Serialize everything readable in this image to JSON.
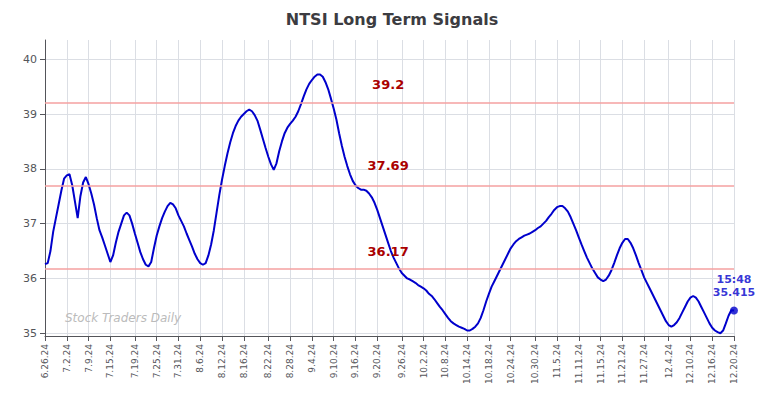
{
  "chart_data": {
    "type": "line",
    "title": "NTSI Long Term Signals",
    "color": "#0000cc",
    "grid": true,
    "ylim": [
      34.95,
      40.35
    ],
    "yticks": [
      35,
      36,
      37,
      38,
      39,
      40
    ],
    "hlines": [
      {
        "y": 39.2,
        "color": "#f5a0a0"
      },
      {
        "y": 37.69,
        "color": "#f5a0a0"
      },
      {
        "y": 36.17,
        "color": "#f5a0a0"
      }
    ],
    "annotations": [
      {
        "text": "39.2",
        "y": 39.42,
        "color": "#aa0000"
      },
      {
        "text": "37.69",
        "y": 37.95,
        "color": "#aa0000"
      },
      {
        "text": "36.17",
        "y": 36.38,
        "color": "#aa0000"
      }
    ],
    "end_label": {
      "text": "15:48\n35.415",
      "color": "#0000cc"
    },
    "watermark": {
      "text": "Stock Traders Daily",
      "color": "#bbbbbb"
    },
    "categories": [
      "6.26.24",
      null,
      null,
      null,
      null,
      null,
      null,
      null,
      "7.2.24",
      null,
      null,
      null,
      null,
      null,
      null,
      null,
      "7.9.24",
      null,
      null,
      null,
      null,
      null,
      null,
      null,
      "7.15.24",
      null,
      null,
      null,
      null,
      null,
      null,
      null,
      null,
      "7.19.24",
      null,
      null,
      null,
      null,
      null,
      null,
      null,
      "7.25.24",
      null,
      null,
      null,
      null,
      null,
      null,
      null,
      "7.31.24",
      null,
      null,
      null,
      null,
      null,
      null,
      null,
      "8.6.24",
      null,
      null,
      null,
      null,
      null,
      null,
      null,
      "8.12.24",
      null,
      null,
      null,
      null,
      null,
      null,
      null,
      "8.16.24",
      null,
      null,
      null,
      null,
      null,
      null,
      null,
      null,
      "8.22.24",
      null,
      null,
      null,
      null,
      null,
      null,
      null,
      "8.28.24",
      null,
      null,
      null,
      null,
      null,
      null,
      null,
      "9.4.24",
      null,
      null,
      null,
      null,
      null,
      null,
      null,
      "9.10.24",
      null,
      null,
      null,
      null,
      null,
      null,
      null,
      "9.16.24",
      null,
      null,
      null,
      null,
      null,
      null,
      null,
      "9.20.24",
      null,
      null,
      null,
      null,
      null,
      null,
      null,
      null,
      "9.26.24",
      null,
      null,
      null,
      null,
      null,
      null,
      null,
      "10.2.24",
      null,
      null,
      null,
      null,
      null,
      null,
      null,
      "10.8.24",
      null,
      null,
      null,
      null,
      null,
      null,
      null,
      "10.14.24",
      null,
      null,
      null,
      null,
      null,
      null,
      null,
      "10.18.24",
      null,
      null,
      null,
      null,
      null,
      null,
      null,
      "10.24.24",
      null,
      null,
      null,
      null,
      null,
      null,
      null,
      null,
      "10.30.24",
      null,
      null,
      null,
      null,
      null,
      null,
      null,
      "11.5.24",
      null,
      null,
      null,
      null,
      null,
      null,
      null,
      "11.11.24",
      null,
      null,
      null,
      null,
      null,
      null,
      null,
      "11.15.24",
      null,
      null,
      null,
      null,
      null,
      null,
      null,
      "11.21.24",
      null,
      null,
      null,
      null,
      null,
      null,
      null,
      "11.27.24",
      null,
      null,
      null,
      null,
      null,
      null,
      null,
      null,
      "12.4.24",
      null,
      null,
      null,
      null,
      null,
      null,
      null,
      "12.10.24",
      null,
      null,
      null,
      null,
      null,
      null,
      null,
      "12.16.24",
      null,
      null,
      null,
      null,
      null,
      null,
      null,
      "12.20.24"
    ],
    "values": [
      36.26,
      36.28,
      36.5,
      36.85,
      37.1,
      37.35,
      37.6,
      37.82,
      37.88,
      37.9,
      37.7,
      37.4,
      37.1,
      37.5,
      37.75,
      37.85,
      37.72,
      37.55,
      37.35,
      37.1,
      36.88,
      36.75,
      36.6,
      36.45,
      36.3,
      36.42,
      36.65,
      36.85,
      37.0,
      37.15,
      37.2,
      37.15,
      37.0,
      36.82,
      36.65,
      36.48,
      36.35,
      36.25,
      36.22,
      36.3,
      36.55,
      36.78,
      36.95,
      37.1,
      37.22,
      37.32,
      37.38,
      37.35,
      37.28,
      37.15,
      37.05,
      36.95,
      36.82,
      36.7,
      36.58,
      36.45,
      36.35,
      36.28,
      36.25,
      36.28,
      36.42,
      36.62,
      36.88,
      37.2,
      37.52,
      37.8,
      38.05,
      38.28,
      38.48,
      38.65,
      38.78,
      38.88,
      38.95,
      39.0,
      39.05,
      39.08,
      39.05,
      38.98,
      38.88,
      38.72,
      38.55,
      38.38,
      38.22,
      38.08,
      37.98,
      38.1,
      38.32,
      38.5,
      38.65,
      38.75,
      38.82,
      38.88,
      38.95,
      39.05,
      39.18,
      39.32,
      39.45,
      39.55,
      39.62,
      39.68,
      39.72,
      39.72,
      39.68,
      39.58,
      39.45,
      39.28,
      39.1,
      38.9,
      38.65,
      38.42,
      38.22,
      38.05,
      37.9,
      37.78,
      37.7,
      37.65,
      37.62,
      37.62,
      37.6,
      37.55,
      37.48,
      37.38,
      37.25,
      37.1,
      36.95,
      36.8,
      36.65,
      36.5,
      36.38,
      36.28,
      36.18,
      36.1,
      36.05,
      36.0,
      35.98,
      35.95,
      35.92,
      35.88,
      35.85,
      35.82,
      35.78,
      35.72,
      35.68,
      35.62,
      35.55,
      35.48,
      35.42,
      35.35,
      35.28,
      35.22,
      35.18,
      35.15,
      35.12,
      35.1,
      35.08,
      35.05,
      35.05,
      35.08,
      35.12,
      35.18,
      35.28,
      35.42,
      35.58,
      35.72,
      35.85,
      35.95,
      36.05,
      36.15,
      36.25,
      36.35,
      36.45,
      36.55,
      36.62,
      36.68,
      36.72,
      36.75,
      36.78,
      36.8,
      36.82,
      36.85,
      36.88,
      36.92,
      36.95,
      37.0,
      37.05,
      37.12,
      37.18,
      37.25,
      37.3,
      37.32,
      37.32,
      37.28,
      37.22,
      37.12,
      37.0,
      36.88,
      36.75,
      36.62,
      36.5,
      36.38,
      36.28,
      36.18,
      36.1,
      36.02,
      35.98,
      35.95,
      35.98,
      36.05,
      36.15,
      36.28,
      36.42,
      36.55,
      36.65,
      36.72,
      36.72,
      36.65,
      36.55,
      36.42,
      36.28,
      36.15,
      36.02,
      35.92,
      35.82,
      35.72,
      35.62,
      35.52,
      35.42,
      35.32,
      35.22,
      35.15,
      35.12,
      35.15,
      35.2,
      35.28,
      35.38,
      35.48,
      35.58,
      35.65,
      35.68,
      35.65,
      35.58,
      35.48,
      35.38,
      35.28,
      35.18,
      35.1,
      35.05,
      35.02,
      35.0,
      35.05,
      35.18,
      35.32,
      35.42,
      35.415
    ]
  }
}
